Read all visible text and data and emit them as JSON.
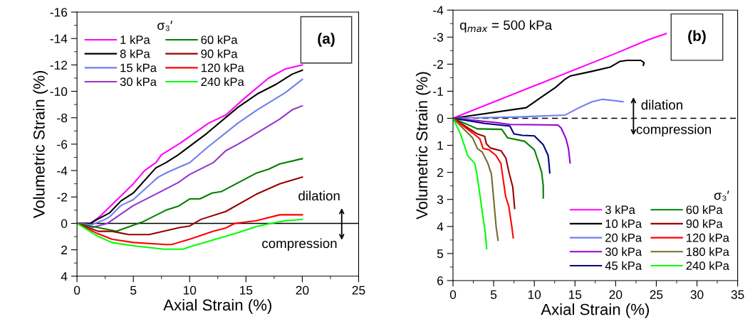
{
  "chart_data": [
    {
      "type": "line",
      "xlabel": "Axial Strain (%)",
      "ylabel": "Volumetric Strain (%)",
      "xlim": [
        0,
        25
      ],
      "ylim": [
        4,
        -16
      ],
      "xticks": [
        0,
        5,
        10,
        15,
        20,
        25
      ],
      "yticks": [
        -16,
        -14,
        -12,
        -10,
        -8,
        -6,
        -4,
        -2,
        0,
        2,
        4
      ],
      "legend": "top left",
      "legend_title": "σ₃′",
      "annotations": [
        "(a)",
        "dilation",
        "compression"
      ],
      "ref_lines": [
        {
          "axis": "y",
          "value": 0,
          "color": "#000000",
          "line_style": "solid"
        }
      ],
      "series": [
        {
          "name": "1 kPa",
          "color": "#ff00ff",
          "x": [
            0,
            1.2,
            2.0,
            5.0,
            6.0,
            7.0,
            7.5,
            9.2,
            11.7,
            13.2,
            14.9,
            17.0,
            18.5,
            20.0
          ],
          "values": [
            0,
            0,
            -0.5,
            -3.0,
            -4.0,
            -4.6,
            -5.2,
            -6.1,
            -7.6,
            -8.2,
            -9.5,
            -11.0,
            -11.7,
            -12.0
          ]
        },
        {
          "name": "8 kPa",
          "color": "#000000",
          "x": [
            0,
            1.2,
            1.8,
            2.9,
            3.9,
            5.0,
            7.0,
            7.9,
            9.0,
            11.5,
            14.3,
            16.0,
            17.6,
            19.1,
            20.0
          ],
          "values": [
            0,
            0,
            -0.3,
            -0.8,
            -1.7,
            -2.3,
            -4.2,
            -4.6,
            -5.2,
            -6.8,
            -8.8,
            -9.8,
            -10.5,
            -11.3,
            -11.6
          ]
        },
        {
          "name": "15 kPa",
          "color": "#6f7ff0",
          "x": [
            0,
            1.3,
            2.5,
            2.9,
            3.9,
            5.0,
            7.2,
            8.1,
            10.0,
            11.5,
            14.3,
            16.0,
            18.5,
            20.0
          ],
          "values": [
            0,
            0.1,
            -0.3,
            -0.5,
            -1.35,
            -1.8,
            -3.5,
            -3.9,
            -4.6,
            -5.7,
            -7.6,
            -8.6,
            -9.9,
            -10.9
          ]
        },
        {
          "name": "30 kPa",
          "color": "#9933cc",
          "x": [
            0,
            1.4,
            2.7,
            5.0,
            7.2,
            9.0,
            10.0,
            12.1,
            13.2,
            14.3,
            15.3,
            18.0,
            19.1,
            20.0
          ],
          "values": [
            0,
            0.3,
            0,
            -1.35,
            -2.3,
            -3.1,
            -3.7,
            -4.6,
            -5.5,
            -6.0,
            -6.5,
            -7.9,
            -8.6,
            -8.9
          ]
        },
        {
          "name": "60 kPa",
          "color": "#008000",
          "x": [
            0,
            3.5,
            5.8,
            7.9,
            9.0,
            10.0,
            10.9,
            12.0,
            12.8,
            15.9,
            17.0,
            18.0,
            20.0
          ],
          "values": [
            0,
            0.6,
            -0.1,
            -1.0,
            -1.3,
            -1.85,
            -1.85,
            -2.3,
            -2.4,
            -3.8,
            -4.1,
            -4.5,
            -4.9
          ]
        },
        {
          "name": "90 kPa",
          "color": "#990000",
          "x": [
            0,
            1.9,
            3.1,
            4.6,
            6.4,
            7.9,
            9.2,
            10.0,
            11.0,
            13.2,
            15.9,
            18.0,
            20.0
          ],
          "values": [
            0,
            0.6,
            0.6,
            0.85,
            0.85,
            0.55,
            0.3,
            0.2,
            -0.3,
            -0.9,
            -2.2,
            -3.0,
            -3.5
          ]
        },
        {
          "name": "120 kPa",
          "color": "#ff0000",
          "x": [
            0,
            1.9,
            3.1,
            5.0,
            7.9,
            8.4,
            10.0,
            12.1,
            13.2,
            14.0,
            15.9,
            18.0,
            20.0
          ],
          "values": [
            0,
            0.8,
            1.2,
            1.45,
            1.6,
            1.6,
            1.2,
            0.6,
            0.35,
            0,
            -0.2,
            -0.65,
            -0.65
          ]
        },
        {
          "name": "240 kPa",
          "color": "#00ff00",
          "x": [
            0,
            1.9,
            3.1,
            5.0,
            7.7,
            9.4,
            10.3,
            12.1,
            14.3,
            15.9,
            17.2,
            18.5,
            20.0
          ],
          "values": [
            0,
            1.0,
            1.45,
            1.7,
            1.95,
            1.95,
            1.7,
            1.25,
            0.7,
            0.25,
            0,
            -0.2,
            -0.3
          ]
        }
      ]
    },
    {
      "type": "line",
      "xlabel": "Axial Strain (%)",
      "ylabel": "Volumetric Strain (%)",
      "xlim": [
        0,
        35
      ],
      "ylim": [
        6,
        -4
      ],
      "xticks": [
        0,
        5,
        10,
        15,
        20,
        25,
        30,
        35
      ],
      "yticks": [
        -4,
        -3,
        -2,
        -1,
        0,
        1,
        2,
        3,
        4,
        5,
        6
      ],
      "legend": "bottom right",
      "legend_title": "σ₃′",
      "annotations": [
        "q$_{max}$ = 500 kPa",
        "(b)",
        "dilation",
        "compression"
      ],
      "ref_lines": [
        {
          "axis": "y",
          "value": 0,
          "color": "#000000",
          "line_style": "dashed"
        }
      ],
      "series": [
        {
          "name": "3 kPa",
          "color": "#ff00ff",
          "x": [
            0,
            10,
            20,
            24,
            26.2
          ],
          "values": [
            0,
            -1.2,
            -2.4,
            -2.9,
            -3.13
          ]
        },
        {
          "name": "10 kPa",
          "color": "#000000",
          "x": [
            0,
            9,
            11.1,
            12.6,
            13.8,
            14.4,
            17,
            19.3,
            20.5,
            21.4,
            23.1,
            23.5,
            23.4
          ],
          "values": [
            0,
            -0.39,
            -0.83,
            -1.14,
            -1.45,
            -1.56,
            -1.73,
            -1.89,
            -2.1,
            -2.14,
            -2.14,
            -2.05,
            -1.96
          ]
        },
        {
          "name": "20 kPa",
          "color": "#6f7ff0",
          "x": [
            0,
            8.2,
            13.8,
            15.5,
            17.1,
            18.4,
            19.9,
            20.9
          ],
          "values": [
            0,
            -0.05,
            -0.12,
            -0.39,
            -0.61,
            -0.7,
            -0.65,
            -0.61
          ]
        },
        {
          "name": "30 kPa",
          "color": "#9900cc",
          "x": [
            0,
            5.3,
            7,
            12.9,
            13.3,
            13.9,
            14.2,
            14.4
          ],
          "values": [
            0,
            0.16,
            0.23,
            0.25,
            0.36,
            0.76,
            1.12,
            1.65
          ]
        },
        {
          "name": "45 kPa",
          "color": "#000080",
          "x": [
            0,
            3.9,
            7,
            7.5,
            8.5,
            10,
            11.1,
            11.7,
            11.8,
            11.9
          ],
          "values": [
            0,
            0.19,
            0.29,
            0.58,
            0.63,
            0.65,
            0.98,
            1.38,
            1.67,
            2.02
          ]
        },
        {
          "name": "60 kPa",
          "color": "#008000",
          "x": [
            0,
            3,
            6,
            6.7,
            8.8,
            10,
            10.6,
            10.9,
            11.1,
            11.1
          ],
          "values": [
            0,
            0.39,
            0.41,
            0.72,
            0.85,
            1.16,
            1.7,
            2.0,
            2.5,
            2.95
          ]
        },
        {
          "name": "90 kPa",
          "color": "#990000",
          "x": [
            0,
            3,
            3.9,
            4.1,
            4.6,
            5.9,
            6.5,
            6.9,
            7.35,
            7.58
          ],
          "values": [
            0,
            0.58,
            0.67,
            0.94,
            1.1,
            1.2,
            1.47,
            2.02,
            2.54,
            3.33
          ]
        },
        {
          "name": "120 kPa",
          "color": "#ff0000",
          "x": [
            0,
            2.4,
            3.3,
            3.7,
            4.4,
            5.3,
            5.89,
            6.47,
            6.85,
            7.2,
            7.41
          ],
          "values": [
            0,
            0.54,
            0.76,
            1.12,
            1.16,
            1.38,
            1.67,
            2.89,
            3.24,
            3.94,
            4.42
          ]
        },
        {
          "name": "180 kPa",
          "color": "#736b2e",
          "x": [
            0,
            2.4,
            3,
            3.6,
            4.29,
            4.72,
            4.87,
            5.31,
            5.54
          ],
          "values": [
            0,
            0.72,
            1.12,
            1.25,
            1.67,
            2.06,
            2.54,
            4.03,
            4.51
          ]
        },
        {
          "name": "240 kPa",
          "color": "#00ff00",
          "x": [
            0,
            0.93,
            1.8,
            2.68,
            2.97,
            3.7,
            4.0,
            4.14
          ],
          "values": [
            0,
            0.58,
            1.38,
            1.67,
            2.11,
            3.68,
            4.29,
            4.82
          ]
        }
      ]
    }
  ]
}
